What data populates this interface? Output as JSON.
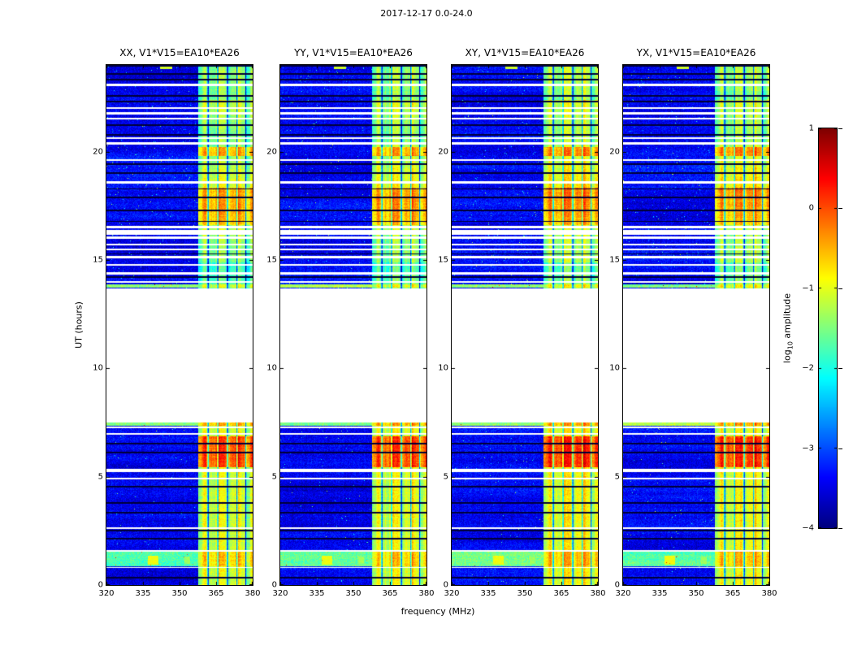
{
  "chart_data": {
    "type": "heatmap",
    "title": "2017-12-17 0.0-24.0",
    "xlabel": "frequency (MHz)",
    "ylabel": "UT (hours)",
    "colormap": "jet",
    "x_range_mhz": [
      320,
      380
    ],
    "x_ticks": [
      320,
      335,
      350,
      365,
      380
    ],
    "x_tick_labels": [
      "320",
      "335",
      "350",
      "365",
      "380"
    ],
    "y_range_hours": [
      0,
      24
    ],
    "y_ticks": [
      0,
      5,
      10,
      15,
      20
    ],
    "y_tick_labels": [
      "0",
      "5",
      "10",
      "15",
      "20"
    ],
    "colorbar_range": [
      -4,
      1
    ],
    "colorbar_ticks": [
      1,
      0,
      -1,
      -2,
      -3,
      -4
    ],
    "colorbar_tick_labels": [
      "1",
      "0",
      "−1",
      "−2",
      "−3",
      "−4"
    ],
    "colorbar_label_parts": {
      "prefix": "log",
      "sub": "10",
      "suffix": " amplitude"
    },
    "panels": [
      {
        "label": "XX, V1*V15=EA10*EA26",
        "seed": 11,
        "band_gain": 0
      },
      {
        "label": "YY, V1*V15=EA10*EA26",
        "seed": 22,
        "band_gain": 0.05
      },
      {
        "label": "XY, V1*V15=EA10*EA26",
        "seed": 33,
        "band_gain": 0.18
      },
      {
        "label": "YX, V1*V15=EA10*EA26",
        "seed": 44,
        "band_gain": 0.12
      }
    ],
    "features": {
      "background_level": -3.42,
      "rfi_band_start_mhz": 357.6,
      "rfi_band_level": -1.18,
      "data_gap_hours": [
        7.5,
        13.7
      ],
      "broadband_bright_hours": [
        0.85,
        1.55
      ],
      "band_bright_hours": [
        5.45,
        6.85
      ],
      "band_bright_extra": 1.05,
      "upper_bright_hours": [
        16.6,
        18.35
      ],
      "orange_spot_hours": [
        19.8,
        20.2
      ],
      "band_dark_lines_mhz": [
        361.7,
        365.7,
        369.7,
        373.6,
        377.2
      ],
      "boundary_bright_hours": [
        [
          7.36,
          7.52
        ],
        [
          13.72,
          13.86
        ]
      ],
      "white_lines": [
        [
          0.8,
          0.03
        ],
        [
          1.58,
          0.05
        ],
        [
          2.62,
          0.03
        ],
        [
          4.92,
          0.03
        ],
        [
          5.3,
          0.08
        ],
        [
          6.98,
          0.04
        ],
        [
          7.28,
          0.03
        ],
        [
          13.98,
          0.04
        ],
        [
          14.38,
          0.05
        ],
        [
          14.78,
          0.03
        ],
        [
          15.12,
          0.05
        ],
        [
          15.48,
          0.04
        ],
        [
          15.72,
          0.03
        ],
        [
          16.02,
          0.05
        ],
        [
          16.28,
          0.1
        ],
        [
          16.52,
          0.04
        ],
        [
          18.58,
          0.05
        ],
        [
          19.62,
          0.03
        ],
        [
          20.38,
          0.05
        ],
        [
          20.62,
          0.03
        ],
        [
          21.52,
          0.04
        ],
        [
          21.78,
          0.06
        ],
        [
          22.02,
          0.03
        ],
        [
          23.08,
          0.04
        ]
      ],
      "black_lines": [
        0.35,
        2.15,
        2.5,
        3.35,
        3.8,
        4.55,
        6.1,
        6.52,
        14.2,
        15.28,
        16.78,
        17.28,
        17.88,
        18.28,
        19.02,
        19.42,
        20.78,
        21.22,
        22.32,
        22.58,
        23.32,
        23.58,
        23.95
      ],
      "blips": [
        {
          "ut": [
            0.95,
            1.35
          ],
          "mhz": [
            337.0,
            341.5
          ],
          "level": -0.95
        },
        {
          "ut": [
            0.98,
            1.3
          ],
          "mhz": [
            352.0,
            354.5
          ],
          "level": -1.35
        },
        {
          "ut": [
            23.8,
            24.0
          ],
          "mhz": [
            342.0,
            347.0
          ],
          "level": -1.1
        }
      ]
    }
  }
}
